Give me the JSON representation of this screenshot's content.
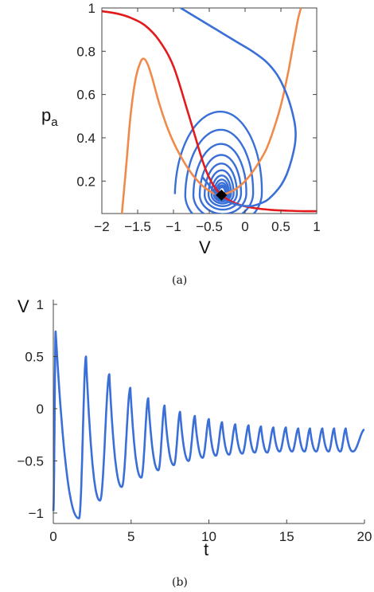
{
  "chart_data": [
    {
      "type": "line",
      "panel": "a",
      "caption": "(a)",
      "xlabel": "V",
      "ylabel": "p",
      "ylabel_sub": "a",
      "xlim": [
        -2,
        1
      ],
      "ylim": [
        0.05,
        1.0
      ],
      "x_ticks": [
        -2,
        -1.5,
        -1,
        -0.5,
        0,
        0.5,
        1
      ],
      "x_tick_labels": [
        "−2",
        "−1.5",
        "−1",
        "−0.5",
        "0",
        "0.5",
        "1"
      ],
      "y_ticks": [
        0.2,
        0.4,
        0.6,
        0.8,
        1
      ],
      "y_tick_labels": [
        "0.2",
        "0.4",
        "0.6",
        "0.8",
        "1"
      ],
      "colors": {
        "red": "#e31a1c",
        "orange": "#f08a4b",
        "blue": "#3a6fd8",
        "marker": "#000000",
        "marker_edge": "#ff7aa8"
      },
      "series": [
        {
          "color": "#e31a1c",
          "x": [
            -2.0,
            -1.8,
            -1.6,
            -1.4,
            -1.2,
            -1.0,
            -0.8,
            -0.6,
            -0.5,
            -0.4,
            -0.3,
            -0.2,
            -0.1,
            0.0,
            0.2,
            0.4,
            0.6,
            0.8,
            1.0
          ],
          "y": [
            0.985,
            0.975,
            0.955,
            0.92,
            0.85,
            0.73,
            0.52,
            0.3,
            0.215,
            0.16,
            0.127,
            0.107,
            0.093,
            0.083,
            0.072,
            0.066,
            0.063,
            0.061,
            0.061
          ]
        },
        {
          "color": "#f08a4b",
          "x": [
            -1.72,
            -1.66,
            -1.6,
            -1.53,
            -1.46,
            -1.41,
            -1.36,
            -1.3,
            -1.2,
            -1.1,
            -1.0,
            -0.9,
            -0.8,
            -0.7,
            -0.6,
            -0.5,
            -0.4,
            -0.3,
            -0.2,
            -0.1,
            0.0,
            0.1,
            0.2,
            0.3,
            0.4,
            0.5,
            0.6,
            0.65,
            0.7,
            0.74,
            0.78
          ],
          "y": [
            0.05,
            0.27,
            0.5,
            0.67,
            0.75,
            0.765,
            0.74,
            0.68,
            0.56,
            0.46,
            0.38,
            0.315,
            0.26,
            0.215,
            0.18,
            0.155,
            0.14,
            0.14,
            0.15,
            0.17,
            0.2,
            0.24,
            0.29,
            0.35,
            0.44,
            0.55,
            0.7,
            0.79,
            0.88,
            0.95,
            1.0
          ]
        },
        {
          "color": "#3a6fd8",
          "x": [
            -0.9,
            -0.7,
            -0.5,
            -0.3,
            -0.1,
            0.1,
            0.3,
            0.45,
            0.57,
            0.65,
            0.7,
            0.7,
            0.65,
            0.58,
            0.5,
            0.4,
            0.3,
            0.2,
            0.1,
            0.0,
            -0.1,
            -0.2,
            -0.3,
            -0.4,
            -0.5,
            -0.55,
            -0.6
          ],
          "y": [
            1.0,
            0.96,
            0.92,
            0.88,
            0.84,
            0.8,
            0.75,
            0.69,
            0.61,
            0.53,
            0.45,
            0.38,
            0.3,
            0.23,
            0.18,
            0.14,
            0.11,
            0.095,
            0.085,
            0.085,
            0.09,
            0.1,
            0.115,
            0.14,
            0.18,
            0.2,
            0.22
          ]
        }
      ],
      "spiral": {
        "center": [
          -0.32,
          0.14
        ],
        "outer_left": -0.98,
        "outer_top": 0.545,
        "turns": 11
      },
      "marker": {
        "x": -0.33,
        "y": 0.135
      }
    },
    {
      "type": "line",
      "panel": "b",
      "caption": "(b)",
      "xlabel": "t",
      "ylabel": "V",
      "xlim": [
        0,
        20
      ],
      "ylim": [
        -1.1,
        1.0
      ],
      "x_ticks": [
        0,
        5,
        10,
        15,
        20
      ],
      "x_tick_labels": [
        "0",
        "5",
        "10",
        "15",
        "20"
      ],
      "y_ticks": [
        -1,
        -0.5,
        0,
        0.5,
        1
      ],
      "y_tick_labels": [
        "−1",
        "−0.5",
        "0",
        "0.5",
        "1"
      ],
      "series": [
        {
          "color": "#3a6fd8",
          "peaks_t": [
            0.15,
            2.1,
            3.6,
            4.95,
            6.1,
            7.15,
            8.15,
            9.1,
            10.0,
            10.85,
            11.7,
            12.55,
            13.35,
            14.15,
            14.95,
            15.75,
            16.5,
            17.3,
            18.05,
            18.8
          ],
          "peaks_v": [
            0.74,
            0.5,
            0.33,
            0.2,
            0.1,
            0.03,
            -0.03,
            -0.07,
            -0.1,
            -0.13,
            -0.15,
            -0.16,
            -0.17,
            -0.18,
            -0.18,
            -0.19,
            -0.19,
            -0.19,
            -0.19,
            -0.19
          ],
          "troughs_t": [
            1.65,
            3.0,
            4.4,
            5.65,
            6.75,
            7.75,
            8.7,
            9.6,
            10.45,
            11.3,
            12.15,
            12.95,
            13.75,
            14.55,
            15.35,
            16.15,
            16.9,
            17.7,
            18.45,
            19.25
          ],
          "troughs_v": [
            -1.05,
            -0.88,
            -0.75,
            -0.66,
            -0.59,
            -0.54,
            -0.5,
            -0.47,
            -0.45,
            -0.44,
            -0.43,
            -0.42,
            -0.42,
            -0.41,
            -0.41,
            -0.41,
            -0.41,
            -0.41,
            -0.41,
            -0.41
          ],
          "start": [
            0.0,
            -0.98
          ],
          "end": [
            20.0,
            -0.2
          ]
        }
      ]
    }
  ]
}
